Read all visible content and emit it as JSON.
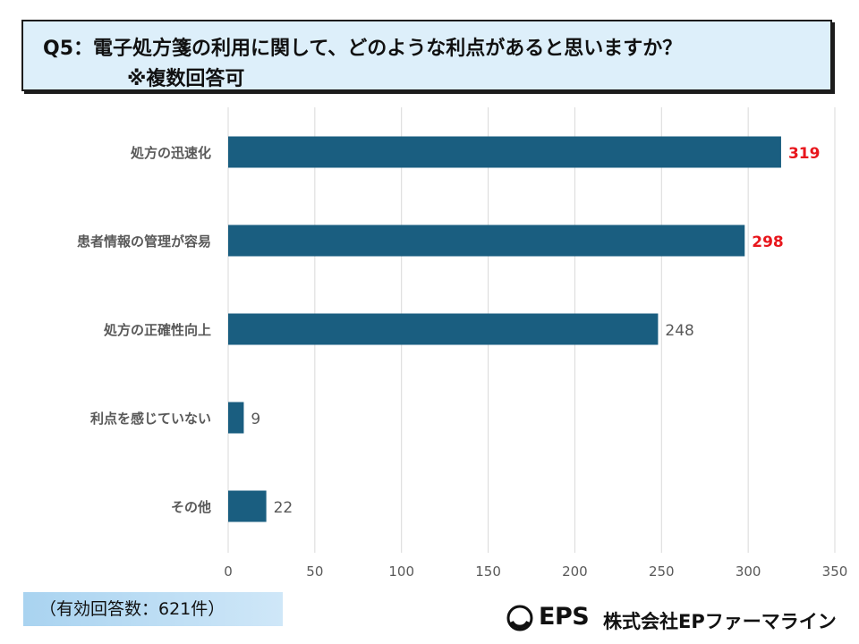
{
  "header": {
    "question_line1": "Q5：電子処方箋の利用に関して、どのような利点があると思いますか？",
    "question_line2": "※複数回答可"
  },
  "chart_data": {
    "type": "bar",
    "orientation": "horizontal",
    "categories": [
      "処方の迅速化",
      "患者情報の管理が容易",
      "処方の正確性向上",
      "利点を感じていない",
      "その他"
    ],
    "values": [
      319,
      298,
      248,
      9,
      22
    ],
    "highlighted": [
      true,
      true,
      false,
      false,
      false
    ],
    "xlim": [
      0,
      350
    ],
    "xticks": [
      0,
      50,
      100,
      150,
      200,
      250,
      300,
      350
    ],
    "grid": true,
    "bar_color": "#1a5e80",
    "highlight_label_color": "#e8161c",
    "label_color": "#595959"
  },
  "footer": {
    "sample_note": "（有効回答数：621件）",
    "logo_text": "EPS",
    "company_name": "株式会社EPファーマライン"
  }
}
